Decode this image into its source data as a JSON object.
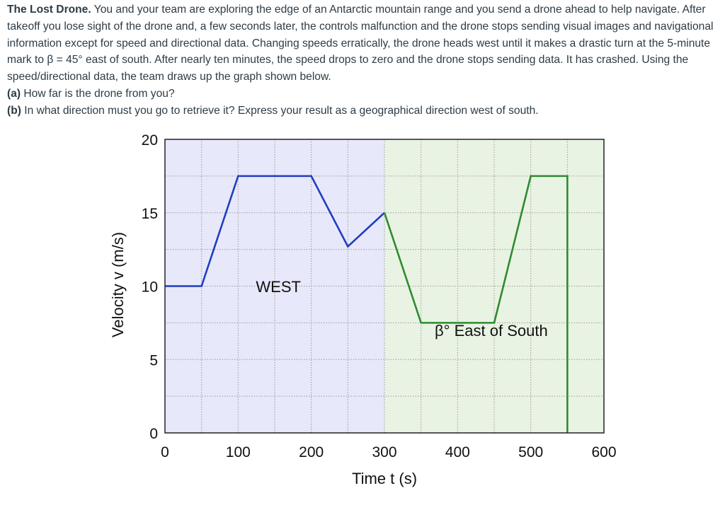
{
  "problem": {
    "title": "The Lost Drone.",
    "body": "You and your team are exploring the edge of an Antarctic mountain range and you send a drone ahead to help navigate. After takeoff you lose sight of the drone and, a few seconds later, the controls malfunction and the drone stops sending visual images and navigational information except for speed and directional data. Changing speeds erratically, the drone heads west until it makes a drastic turn at the 5-minute mark to β = 45° east of south. After nearly ten minutes, the speed drops to zero and the drone stops sending data. It has crashed. Using the speed/directional data, the team draws up the graph shown below.",
    "part_a_label": "(a)",
    "part_a_text": "How far is the drone from you?",
    "part_b_label": "(b)",
    "part_b_text": "In what direction must you go to retrieve it? Express your result as a geographical direction west of south."
  },
  "chart_data": {
    "type": "line",
    "xlabel": "Time t (s)",
    "ylabel": "Velocity v (m/s)",
    "xlim": [
      0,
      600
    ],
    "ylim": [
      0,
      20
    ],
    "x_ticks": [
      "0",
      "100",
      "200",
      "300",
      "400",
      "500",
      "600"
    ],
    "y_ticks": [
      "0",
      "5",
      "10",
      "15",
      "20"
    ],
    "grid": true,
    "regions": [
      {
        "label": "WEST",
        "x_range": [
          0,
          300
        ],
        "color": "#e8e8fb"
      },
      {
        "label": "β° East of South",
        "x_range": [
          300,
          600
        ],
        "color": "#e9f3e4"
      }
    ],
    "series": [
      {
        "color": "#1f3fbf",
        "x": [
          0,
          50,
          100,
          200,
          250,
          300
        ],
        "y": [
          10,
          10,
          17.5,
          17.5,
          12.7,
          15
        ]
      },
      {
        "color": "#2e8b2e",
        "x": [
          300,
          350,
          450,
          500,
          550,
          550
        ],
        "y": [
          15,
          7.5,
          7.5,
          17.5,
          17.5,
          0
        ]
      }
    ],
    "colors": {
      "west_line": "#1f3fbf",
      "south_line": "#2e8b2e",
      "west_bg": "#e8e8fb",
      "south_bg": "#e9f3e4"
    }
  }
}
